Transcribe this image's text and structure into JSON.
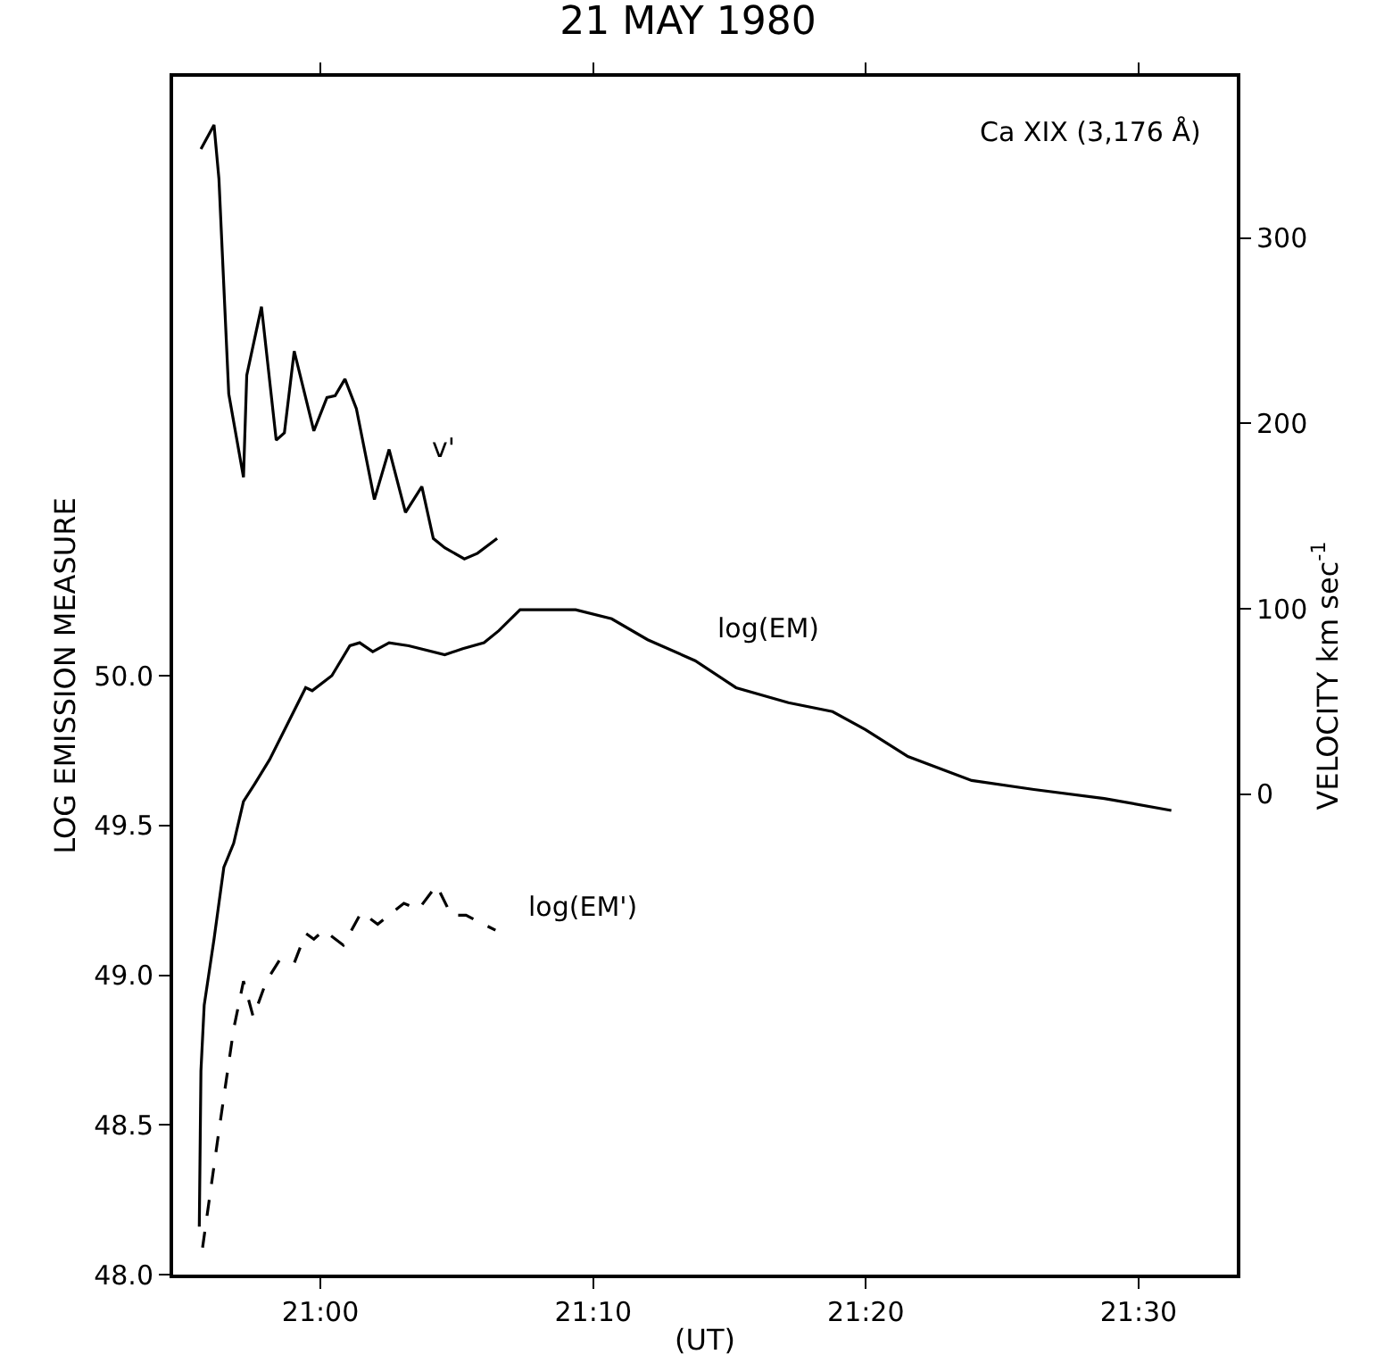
{
  "chart_data": {
    "type": "line",
    "title": "21 MAY 1980",
    "xlabel": "(UT)",
    "ylabel": "LOG EMISSION MEASURE",
    "y2label": "VELOCITY km sec$^{-1}$",
    "xlim": [
      20.91,
      21.56
    ],
    "xticks": [
      {
        "value": 21.0,
        "label": "21:00"
      },
      {
        "value": 21.1667,
        "label": "21:10"
      },
      {
        "value": 21.3333,
        "label": "21:20"
      },
      {
        "value": 21.5,
        "label": "21:30"
      }
    ],
    "ylim": [
      48.0,
      52.0
    ],
    "yticks": [
      {
        "value": 48.0,
        "label": "48.0"
      },
      {
        "value": 48.5,
        "label": "48.5"
      },
      {
        "value": 49.0,
        "label": "49.0"
      },
      {
        "value": 49.5,
        "label": "49.5"
      },
      {
        "value": 50.0,
        "label": "50.0"
      }
    ],
    "y2lim": [
      -259,
      387
    ],
    "y2ticks": [
      0,
      100,
      200,
      300
    ],
    "legend": false,
    "marker": "none",
    "series": [
      {
        "name": "log(EM)",
        "color": "#000000",
        "line_style": "solid",
        "x": [
          20.926,
          20.927,
          20.929,
          20.935,
          20.941,
          20.947,
          20.953,
          20.96,
          20.969,
          20.98,
          20.991,
          20.995,
          21.007,
          21.018,
          21.024,
          21.032,
          21.042,
          21.054,
          21.076,
          21.087,
          21.1,
          21.109,
          21.122,
          21.127,
          21.156,
          21.178,
          21.2,
          21.229,
          21.254,
          21.286,
          21.313,
          21.333,
          21.359,
          21.398,
          21.436,
          21.479,
          21.52
        ],
        "values": [
          48.16,
          48.68,
          48.9,
          49.12,
          49.36,
          49.44,
          49.58,
          49.64,
          49.72,
          49.84,
          49.96,
          49.95,
          50.0,
          50.1,
          50.11,
          50.08,
          50.11,
          50.1,
          50.07,
          50.09,
          50.11,
          50.15,
          50.22,
          50.22,
          50.22,
          50.19,
          50.12,
          50.05,
          49.96,
          49.91,
          49.88,
          49.82,
          49.73,
          49.65,
          49.62,
          49.59,
          49.55
        ]
      },
      {
        "name": "log(EM')",
        "color": "#000000",
        "line_style": "dashed",
        "x": [
          20.928,
          20.938,
          20.947,
          20.953,
          20.959,
          20.967,
          20.975,
          20.984,
          20.991,
          20.996,
          21.002,
          21.014,
          21.025,
          21.035,
          21.051,
          21.06,
          21.071,
          21.08,
          21.089,
          21.107
        ],
        "values": [
          48.09,
          48.48,
          48.82,
          48.98,
          48.86,
          48.98,
          49.05,
          49.04,
          49.14,
          49.12,
          49.15,
          49.1,
          49.21,
          49.17,
          49.24,
          49.22,
          49.3,
          49.2,
          49.2,
          49.15
        ]
      },
      {
        "name": "v'",
        "color": "#000000",
        "line_style": "solid",
        "axis": "y2",
        "x": [
          20.927,
          20.935,
          20.938,
          20.94,
          20.944,
          20.953,
          20.955,
          20.964,
          20.973,
          20.978,
          20.984,
          20.996,
          21.004,
          21.009,
          21.015,
          21.022,
          21.033,
          21.042,
          21.052,
          21.062,
          21.069,
          21.076,
          21.088,
          21.096,
          21.108
        ],
        "values": [
          348,
          361,
          332,
          293,
          216,
          171,
          226,
          263,
          191,
          195,
          239,
          196,
          214,
          215,
          224,
          208,
          159,
          186,
          152,
          166,
          138,
          133,
          127,
          130,
          138
        ]
      }
    ],
    "annotations": [
      "Ca XIX (3,176 Å)"
    ]
  }
}
